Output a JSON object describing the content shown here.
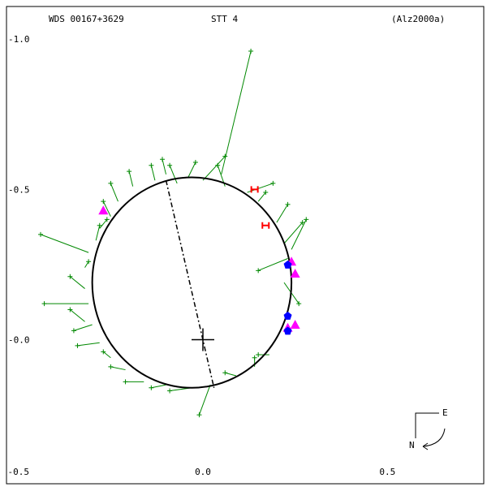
{
  "header": {
    "wds": "WDS 00167+3629",
    "disc": "STT   4",
    "ref": "(Alz2000a)"
  },
  "compass": {
    "east": "E",
    "north": "N"
  },
  "colors": {
    "orbit": "#000000",
    "obs": "#008800",
    "special": "#ff00ff",
    "speckle": "#0000ff",
    "hipp": "#ff0000",
    "frame": "#000000"
  },
  "chart_data": {
    "type": "scatter",
    "title": "",
    "xlim": [
      -0.55,
      0.77
    ],
    "ylim": [
      -1.13,
      0.49
    ],
    "y_inverted": true,
    "x_ticks": [
      {
        "v": -0.5,
        "label": "-0.5"
      },
      {
        "v": 0.0,
        "label": "0.0"
      },
      {
        "v": 0.5,
        "label": "0.5"
      }
    ],
    "y_ticks": [
      {
        "v": -1.0,
        "label": "-1.0"
      },
      {
        "v": -0.5,
        "label": "-0.5"
      },
      {
        "v": 0.0,
        "label": "-0.0"
      }
    ],
    "orbit": {
      "cx": -0.03,
      "cy": -0.19,
      "rx": 0.27,
      "ry": 0.35
    },
    "line_of_nodes": [
      [
        -0.1,
        -0.53
      ],
      [
        0.03,
        0.16
      ]
    ],
    "primary": [
      0.0,
      0.0
    ],
    "observations": [
      [
        0.13,
        -0.96,
        0.05,
        -0.55
      ],
      [
        -0.09,
        -0.58,
        -0.07,
        -0.52
      ],
      [
        -0.14,
        -0.58,
        -0.13,
        -0.53
      ],
      [
        -0.2,
        -0.56,
        -0.19,
        -0.51
      ],
      [
        -0.25,
        -0.52,
        -0.23,
        -0.46
      ],
      [
        -0.27,
        -0.46,
        -0.25,
        -0.41
      ],
      [
        -0.26,
        -0.4,
        -0.28,
        -0.37
      ],
      [
        -0.28,
        -0.38,
        -0.29,
        -0.33
      ],
      [
        -0.44,
        -0.35,
        -0.31,
        -0.29
      ],
      [
        -0.31,
        -0.26,
        -0.32,
        -0.24
      ],
      [
        -0.36,
        -0.21,
        -0.32,
        -0.17
      ],
      [
        -0.43,
        -0.12,
        -0.31,
        -0.12
      ],
      [
        -0.36,
        -0.1,
        -0.32,
        -0.06
      ],
      [
        -0.35,
        -0.03,
        -0.3,
        -0.05
      ],
      [
        -0.34,
        0.02,
        -0.28,
        0.01
      ],
      [
        -0.27,
        0.04,
        -0.25,
        0.06
      ],
      [
        -0.25,
        0.09,
        -0.21,
        0.1
      ],
      [
        -0.21,
        0.14,
        -0.16,
        0.14
      ],
      [
        -0.14,
        0.16,
        -0.1,
        0.15
      ],
      [
        -0.09,
        0.17,
        -0.03,
        0.16
      ],
      [
        -0.01,
        0.25,
        0.02,
        0.15
      ],
      [
        0.06,
        0.11,
        0.09,
        0.12
      ],
      [
        0.14,
        0.06,
        0.14,
        0.09
      ],
      [
        0.15,
        0.05,
        0.18,
        0.05
      ],
      [
        0.26,
        -0.12,
        0.22,
        -0.19
      ],
      [
        0.15,
        -0.23,
        0.23,
        -0.27
      ],
      [
        0.27,
        -0.39,
        0.22,
        -0.32
      ],
      [
        0.23,
        -0.45,
        0.2,
        -0.39
      ],
      [
        0.17,
        -0.49,
        0.15,
        -0.46
      ],
      [
        0.19,
        -0.52,
        0.12,
        -0.49
      ],
      [
        0.04,
        -0.58,
        0.06,
        -0.51
      ],
      [
        0.06,
        -0.61,
        0.0,
        -0.53
      ],
      [
        -0.02,
        -0.59,
        -0.04,
        -0.54
      ],
      [
        -0.11,
        -0.6,
        -0.1,
        -0.55
      ],
      [
        0.28,
        -0.4,
        0.24,
        -0.3
      ]
    ],
    "special_points": [
      {
        "kind": "magenta",
        "x": 0.24,
        "y": -0.26
      },
      {
        "kind": "magenta",
        "x": 0.25,
        "y": -0.22
      },
      {
        "kind": "magenta",
        "x": 0.25,
        "y": -0.05
      },
      {
        "kind": "magenta",
        "x": 0.23,
        "y": -0.04
      },
      {
        "kind": "magenta",
        "x": -0.27,
        "y": -0.43
      },
      {
        "kind": "blue",
        "x": 0.23,
        "y": -0.25
      },
      {
        "kind": "blue",
        "x": 0.23,
        "y": -0.08
      },
      {
        "kind": "blue",
        "x": 0.23,
        "y": -0.03
      },
      {
        "kind": "red",
        "x": 0.14,
        "y": -0.5
      },
      {
        "kind": "red",
        "x": 0.17,
        "y": -0.38
      }
    ]
  }
}
